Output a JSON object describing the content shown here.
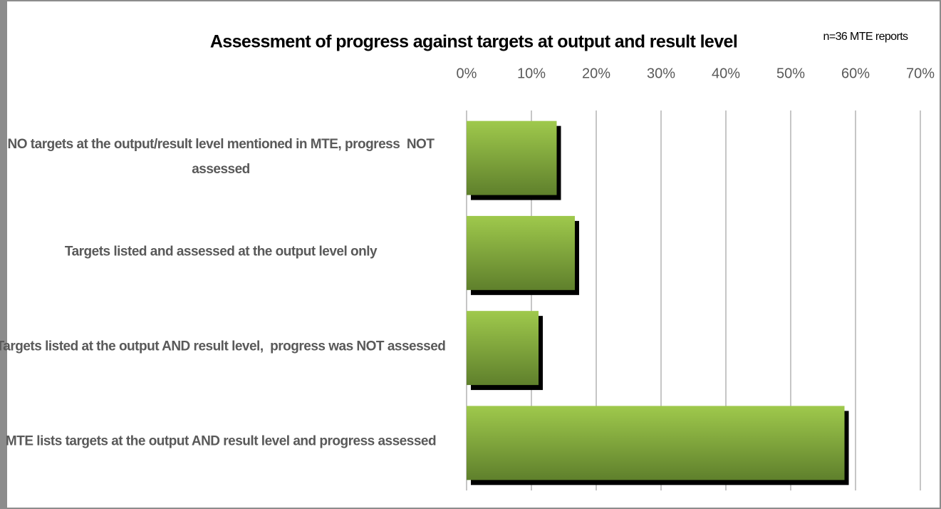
{
  "chart_data": {
    "type": "hbar",
    "title": "Assessment of progress against targets at output and result level",
    "annotation": "n=36 MTE reports",
    "categories": [
      "NO targets at the output/result level mentioned in MTE, progress  NOT assessed",
      "Targets listed and assessed at the output level only",
      "Targets listed at the output AND result level,  progress was NOT assessed",
      "MTE lists targets at the output AND result level and progress assessed"
    ],
    "values": [
      13.9,
      16.7,
      11.1,
      58.3
    ],
    "color": "#7fa83a",
    "xlim": [
      0,
      70
    ],
    "xticks": [
      {
        "value": 0,
        "label": "0%"
      },
      {
        "value": 10,
        "label": "10%"
      },
      {
        "value": 20,
        "label": "20%"
      },
      {
        "value": 30,
        "label": "30%"
      },
      {
        "value": 40,
        "label": "40%"
      },
      {
        "value": 50,
        "label": "50%"
      },
      {
        "value": 60,
        "label": "60%"
      },
      {
        "value": 70,
        "label": "70%"
      }
    ],
    "grid": true
  }
}
